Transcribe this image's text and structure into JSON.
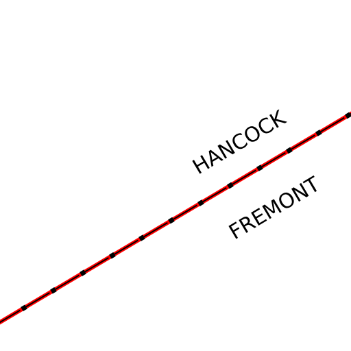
{
  "map": {
    "background_color": "#ffffff",
    "boundary": {
      "type": "county-line",
      "line_color": "#ff0000",
      "dash_color": "#000000"
    },
    "labels": {
      "north": "HANCOCK",
      "south": "FREMONT"
    },
    "label_color": "#000000"
  }
}
